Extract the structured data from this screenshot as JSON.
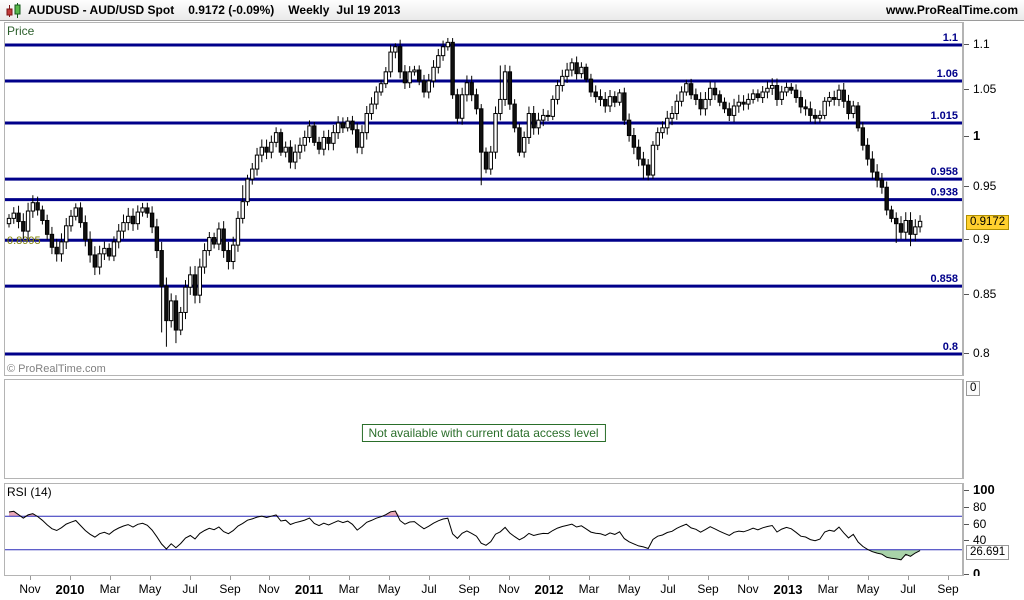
{
  "title_bar": {
    "symbol_title": "AUDUSD - AUD/USD Spot",
    "price_change": "0.9172 (-0.09%)",
    "timeframe": "Weekly",
    "date": "Jul 19 2013",
    "site": "www.ProRealTime.com"
  },
  "price_panel": {
    "label": "Price",
    "watermark": "© ProRealTime.com",
    "current_price_label": "0.9172",
    "left_level_label": "0.8995",
    "axis_ticks": [
      {
        "value": 1.1,
        "label": "1.1"
      },
      {
        "value": 1.05,
        "label": "1.05"
      },
      {
        "value": 1.0,
        "label": "1",
        "bold": true
      },
      {
        "value": 0.95,
        "label": "0.95"
      },
      {
        "value": 0.9,
        "label": "0.9"
      },
      {
        "value": 0.85,
        "label": "0.85"
      },
      {
        "value": 0.8,
        "label": "0.8"
      }
    ]
  },
  "volume_panel": {
    "message": "Not available with current data access level",
    "axis_value": "0"
  },
  "rsi_panel": {
    "label": "RSI (14)",
    "current_value_label": "26.691",
    "axis_ticks": [
      {
        "value": 100,
        "label": "100",
        "bold": true
      },
      {
        "value": 80,
        "label": "80"
      },
      {
        "value": 60,
        "label": "60"
      },
      {
        "value": 40,
        "label": "40"
      },
      {
        "value": 0,
        "label": "0",
        "bold": true
      }
    ]
  },
  "x_axis": {
    "labels": [
      {
        "text": "Nov"
      },
      {
        "text": "2010",
        "year": true
      },
      {
        "text": "Mar"
      },
      {
        "text": "May"
      },
      {
        "text": "Jul"
      },
      {
        "text": "Sep"
      },
      {
        "text": "Nov"
      },
      {
        "text": "2011",
        "year": true
      },
      {
        "text": "Mar"
      },
      {
        "text": "May"
      },
      {
        "text": "Jul"
      },
      {
        "text": "Sep"
      },
      {
        "text": "Nov"
      },
      {
        "text": "2012",
        "year": true
      },
      {
        "text": "Mar"
      },
      {
        "text": "May"
      },
      {
        "text": "Jul"
      },
      {
        "text": "Sep"
      },
      {
        "text": "Nov"
      },
      {
        "text": "2013",
        "year": true
      },
      {
        "text": "Mar"
      },
      {
        "text": "May"
      },
      {
        "text": "Jul"
      },
      {
        "text": "Sep"
      }
    ]
  },
  "chart_data": {
    "type": "candlestick",
    "title": "AUDUSD - AUD/USD Spot",
    "timeframe": "Weekly",
    "last_date": "Jul 19 2013",
    "scale": "log",
    "ylim": [
      0.793,
      1.115
    ],
    "x_range": [
      "Oct 2009",
      "Sep 2013"
    ],
    "last_close": 0.9172,
    "first_open": 0.915,
    "horizontal_levels": [
      {
        "value": 1.1,
        "label": "1.1"
      },
      {
        "value": 1.06,
        "label": "1.06"
      },
      {
        "value": 1.015,
        "label": "1.015"
      },
      {
        "value": 0.958,
        "label": "0.958"
      },
      {
        "value": 0.938,
        "label": "0.938"
      },
      {
        "value": 0.8995,
        "label": "0.8995",
        "label_side": "left"
      },
      {
        "value": 0.858,
        "label": "0.858"
      },
      {
        "value": 0.8,
        "label": "0.8"
      }
    ],
    "closes": [
      0.92,
      0.925,
      0.917,
      0.908,
      0.927,
      0.935,
      0.928,
      0.918,
      0.905,
      0.893,
      0.887,
      0.898,
      0.913,
      0.922,
      0.93,
      0.916,
      0.9,
      0.886,
      0.875,
      0.887,
      0.892,
      0.885,
      0.898,
      0.908,
      0.916,
      0.922,
      0.915,
      0.926,
      0.93,
      0.925,
      0.912,
      0.89,
      0.858,
      0.828,
      0.845,
      0.82,
      0.835,
      0.857,
      0.868,
      0.85,
      0.875,
      0.89,
      0.902,
      0.896,
      0.91,
      0.89,
      0.88,
      0.895,
      0.92,
      0.936,
      0.958,
      0.968,
      0.982,
      0.99,
      0.985,
      0.995,
      1.005,
      0.985,
      0.99,
      0.975,
      0.985,
      0.992,
      1.0,
      1.012,
      0.995,
      0.988,
      1.0,
      0.994,
      1.005,
      1.015,
      1.01,
      1.017,
      1.008,
      0.99,
      1.005,
      1.025,
      1.035,
      1.048,
      1.057,
      1.07,
      1.092,
      1.098,
      1.07,
      1.058,
      1.07,
      1.072,
      1.06,
      1.048,
      1.06,
      1.075,
      1.088,
      1.098,
      1.103,
      1.045,
      1.02,
      1.045,
      1.058,
      1.045,
      1.03,
      0.985,
      0.968,
      0.985,
      1.025,
      1.04,
      1.07,
      1.035,
      1.01,
      0.985,
      1.0,
      1.025,
      1.01,
      1.018,
      1.023,
      1.022,
      1.04,
      1.055,
      1.065,
      1.072,
      1.08,
      1.068,
      1.075,
      1.062,
      1.048,
      1.043,
      1.04,
      1.033,
      1.043,
      1.037,
      1.047,
      1.018,
      1.002,
      0.99,
      0.978,
      0.972,
      0.962,
      0.992,
      1.005,
      1.01,
      1.02,
      1.025,
      1.038,
      1.048,
      1.057,
      1.045,
      1.04,
      1.03,
      1.04,
      1.052,
      1.045,
      1.037,
      1.03,
      1.023,
      1.033,
      1.037,
      1.035,
      1.04,
      1.046,
      1.042,
      1.048,
      1.052,
      1.055,
      1.04,
      1.048,
      1.053,
      1.05,
      1.042,
      1.032,
      1.03,
      1.023,
      1.02,
      1.023,
      1.038,
      1.042,
      1.04,
      1.05,
      1.038,
      1.025,
      1.033,
      1.01,
      0.992,
      0.978,
      0.965,
      0.957,
      0.95,
      0.928,
      0.92,
      0.915,
      0.907,
      0.918,
      0.905,
      0.912,
      0.9172
    ],
    "wick_overrides": {
      "32": {
        "l": 0.818
      },
      "33": {
        "l": 0.806
      },
      "35": {
        "l": 0.809
      },
      "49": {
        "h": 0.952
      },
      "80": {
        "h": 1.1
      },
      "81": {
        "h": 1.102
      },
      "91": {
        "h": 1.105
      },
      "92": {
        "h": 1.108
      },
      "99": {
        "l": 0.952
      },
      "103": {
        "h": 1.077
      },
      "118": {
        "h": 1.085
      },
      "133": {
        "l": 0.958
      },
      "174": {
        "h": 1.056
      },
      "186": {
        "l": 0.897
      },
      "189": {
        "l": 0.894
      }
    },
    "rsi": {
      "period": 14,
      "seed_gain": 0.009,
      "seed_loss": 0.003,
      "last_value": 26.691,
      "upper_level": 70,
      "lower_level": 30
    }
  },
  "colors": {
    "level_line": "#00008a",
    "level_label": "#00008a",
    "left_level_label": "#808000",
    "candle_up_fill": "#ffffff",
    "candle_down_fill": "#111111",
    "candle_stroke": "#000000",
    "price_tag_bg": "#ffd02e",
    "rsi_level_line": "#2a2ab8",
    "rsi_line": "#000000",
    "rsi_overbought_fill": "#eaa9b8",
    "rsi_oversold_fill": "#a9d3a9",
    "message_green": "#2a6e2a",
    "price_label_green": "#2c5f2c",
    "watermark_gray": "#808080"
  }
}
